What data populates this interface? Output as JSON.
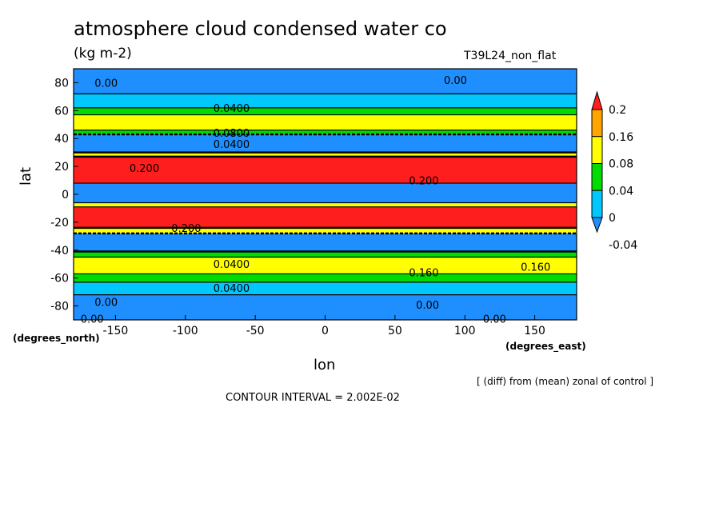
{
  "chart_data": {
    "type": "heatmap",
    "title": "atmosphere cloud condensed water co",
    "units": "(kg m-2)",
    "run_label": "T39L24_non_flat",
    "xlabel": "lon",
    "ylabel": "lat",
    "x_units_label": "(degrees_east)",
    "y_units_label": "(degrees_north)",
    "xlim": [
      -180,
      180
    ],
    "ylim": [
      -90,
      90
    ],
    "x_ticks": [
      -150,
      -100,
      -50,
      0,
      50,
      100,
      150
    ],
    "y_ticks": [
      80,
      60,
      40,
      20,
      0,
      -20,
      -40,
      -60,
      -80
    ],
    "colorbar": {
      "levels": [
        -0.04,
        0,
        0.04,
        0.08,
        0.16,
        0.2
      ],
      "level_labels": [
        "-0.04",
        "0",
        "0.04",
        "0.08",
        "0.16",
        "0.2"
      ],
      "colors": [
        "#1f8fff",
        "#00c8ff",
        "#00dc00",
        "#ffff00",
        "#ffa500",
        "#ff1e1e"
      ]
    },
    "bands": [
      {
        "lat_from": 90,
        "lat_to": 72,
        "value": -0.02
      },
      {
        "lat_from": 72,
        "lat_to": 62,
        "value": 0.02
      },
      {
        "lat_from": 62,
        "lat_to": 57,
        "value": 0.06
      },
      {
        "lat_from": 57,
        "lat_to": 46,
        "value": 0.12
      },
      {
        "lat_from": 46,
        "lat_to": 43,
        "value": 0.06
      },
      {
        "lat_from": 43,
        "lat_to": 30,
        "value": -0.02
      },
      {
        "lat_from": 30,
        "lat_to": 27,
        "value": 0.12
      },
      {
        "lat_from": 27,
        "lat_to": 8,
        "value": 0.22
      },
      {
        "lat_from": 8,
        "lat_to": -6,
        "value": -0.02
      },
      {
        "lat_from": -6,
        "lat_to": -9,
        "value": 0.12
      },
      {
        "lat_from": -9,
        "lat_to": -24,
        "value": 0.22
      },
      {
        "lat_from": -24,
        "lat_to": -28,
        "value": 0.12
      },
      {
        "lat_from": -28,
        "lat_to": -41,
        "value": -0.02
      },
      {
        "lat_from": -41,
        "lat_to": -45,
        "value": 0.06
      },
      {
        "lat_from": -45,
        "lat_to": -57,
        "value": 0.12
      },
      {
        "lat_from": -57,
        "lat_to": -63,
        "value": 0.06
      },
      {
        "lat_from": -63,
        "lat_to": -72,
        "value": 0.02
      },
      {
        "lat_from": -72,
        "lat_to": -90,
        "value": -0.02
      }
    ],
    "contour_labels": [
      {
        "text": "0.00",
        "lon": -165,
        "lat": 80
      },
      {
        "text": "0.00",
        "lon": 85,
        "lat": 82
      },
      {
        "text": "0.0400",
        "lon": -80,
        "lat": 62
      },
      {
        "text": "0.0800",
        "lon": -80,
        "lat": 44
      },
      {
        "text": "0.0400",
        "lon": -80,
        "lat": 36
      },
      {
        "text": "0.200",
        "lon": -140,
        "lat": 19
      },
      {
        "text": "0.200",
        "lon": 60,
        "lat": 10
      },
      {
        "text": "0.200",
        "lon": -110,
        "lat": -24
      },
      {
        "text": "0.0400",
        "lon": -80,
        "lat": -50
      },
      {
        "text": "0.160",
        "lon": 60,
        "lat": -56
      },
      {
        "text": "0.160",
        "lon": 140,
        "lat": -52
      },
      {
        "text": "0.0400",
        "lon": -80,
        "lat": -67
      },
      {
        "text": "0.00",
        "lon": -165,
        "lat": -77
      },
      {
        "text": "0.00",
        "lon": 65,
        "lat": -79
      },
      {
        "text": "0.00",
        "lon": -175,
        "lat": -89
      },
      {
        "text": "0.00",
        "lon": 113,
        "lat": -89
      }
    ],
    "annotation": "[ (diff) from (mean) zonal of control ]",
    "contour_interval": "CONTOUR INTERVAL = 2.002E-02"
  }
}
